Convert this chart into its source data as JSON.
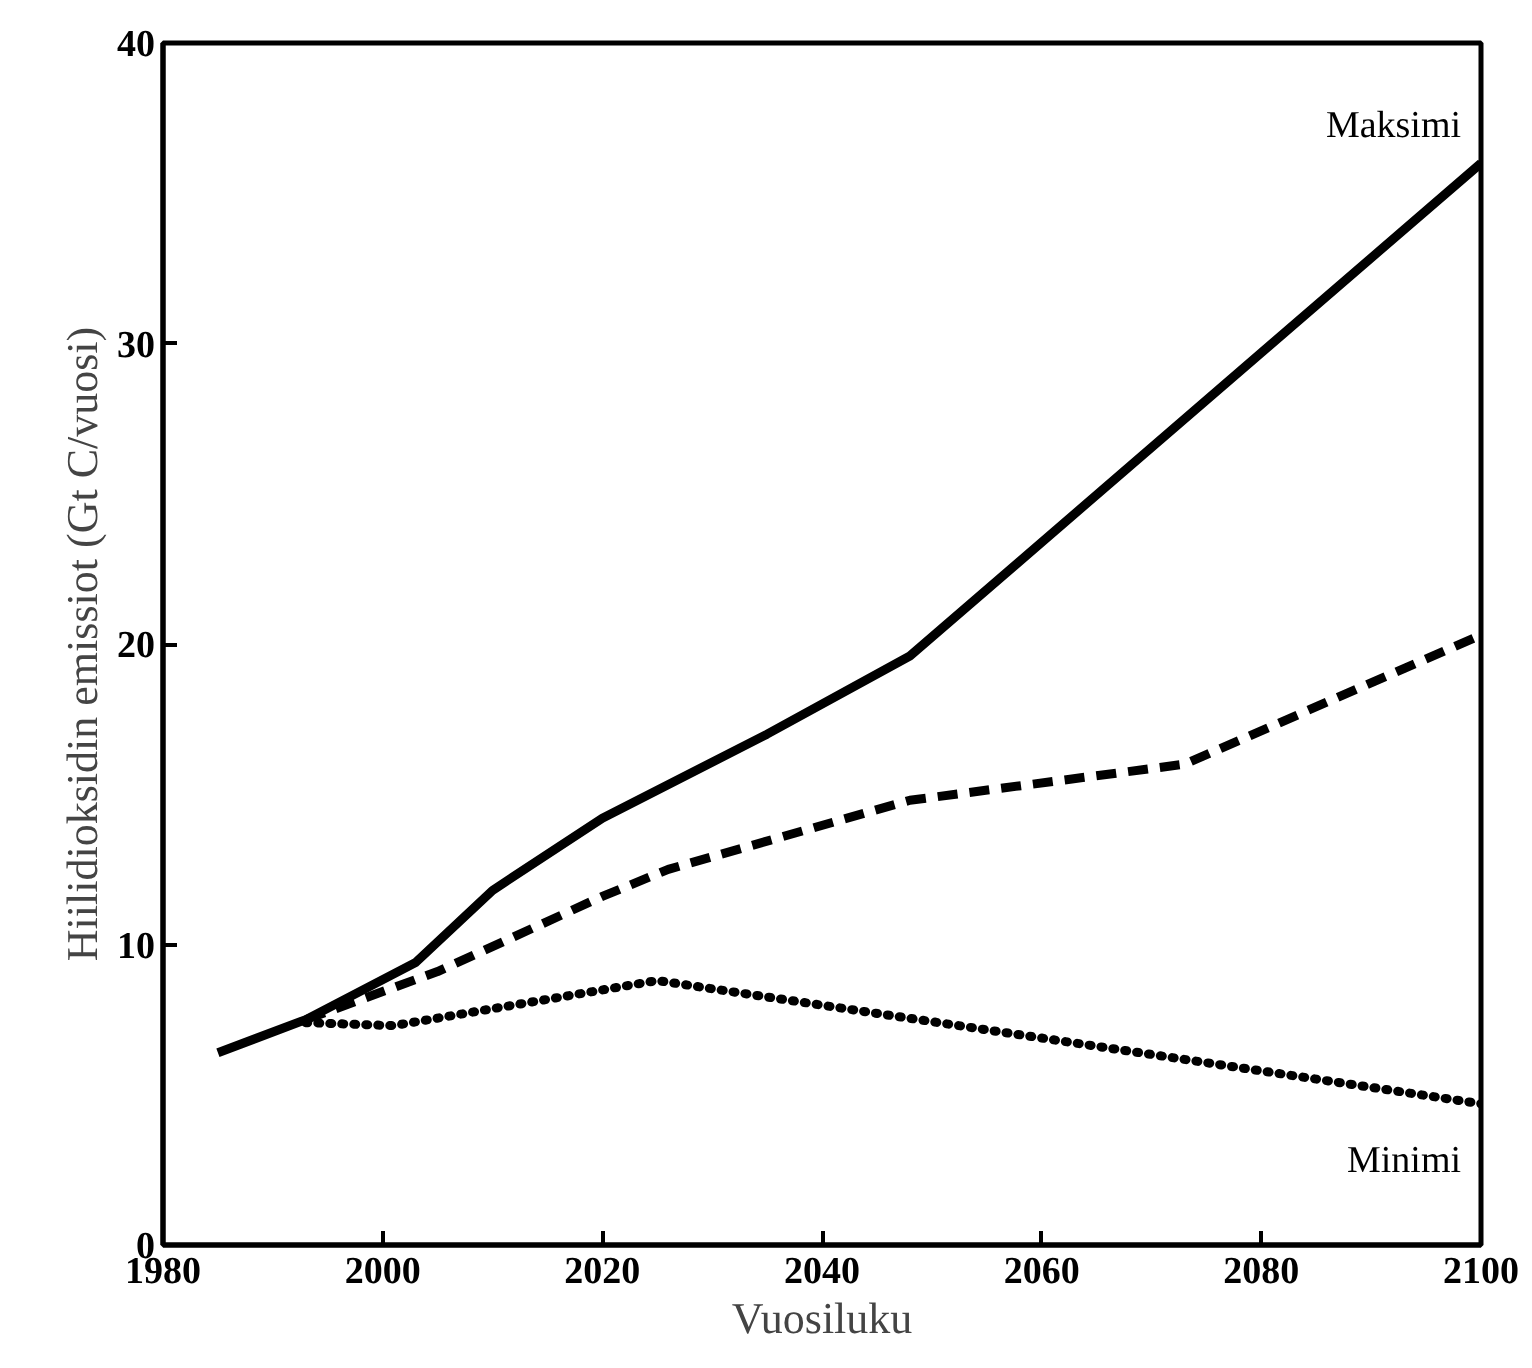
{
  "chart_data": {
    "type": "line",
    "xlabel": "Vuosiluku",
    "ylabel": "Hiilidioksidin emissiot (Gt C/vuosi)",
    "xlim": [
      1980,
      2100
    ],
    "xticks": [
      1980,
      2000,
      2020,
      2040,
      2060,
      2080,
      2100
    ],
    "ylim": [
      0,
      40
    ],
    "yticks": [
      0,
      10,
      20,
      30,
      40
    ],
    "grid": false,
    "legend": false,
    "marker": "none",
    "series": [
      {
        "name": "Maksimi",
        "color": "#000000",
        "line_style": "solid",
        "x": [
          1985,
          1993,
          2003,
          2010,
          2020,
          2035,
          2048,
          2100
        ],
        "values": [
          6.4,
          7.5,
          9.4,
          11.8,
          14.2,
          17.0,
          19.6,
          36.0
        ]
      },
      {
        "color": "#000000",
        "line_style": "dashed",
        "x": [
          1993,
          2005,
          2020,
          2026,
          2048,
          2073,
          2100
        ],
        "values": [
          7.5,
          9.1,
          11.6,
          12.5,
          14.8,
          16.0,
          20.3
        ]
      },
      {
        "name": "Minimi",
        "color": "#000000",
        "line_style": "dotted",
        "x": [
          1993,
          2001,
          2025,
          2100
        ],
        "values": [
          7.4,
          7.3,
          8.8,
          4.7
        ]
      }
    ]
  }
}
